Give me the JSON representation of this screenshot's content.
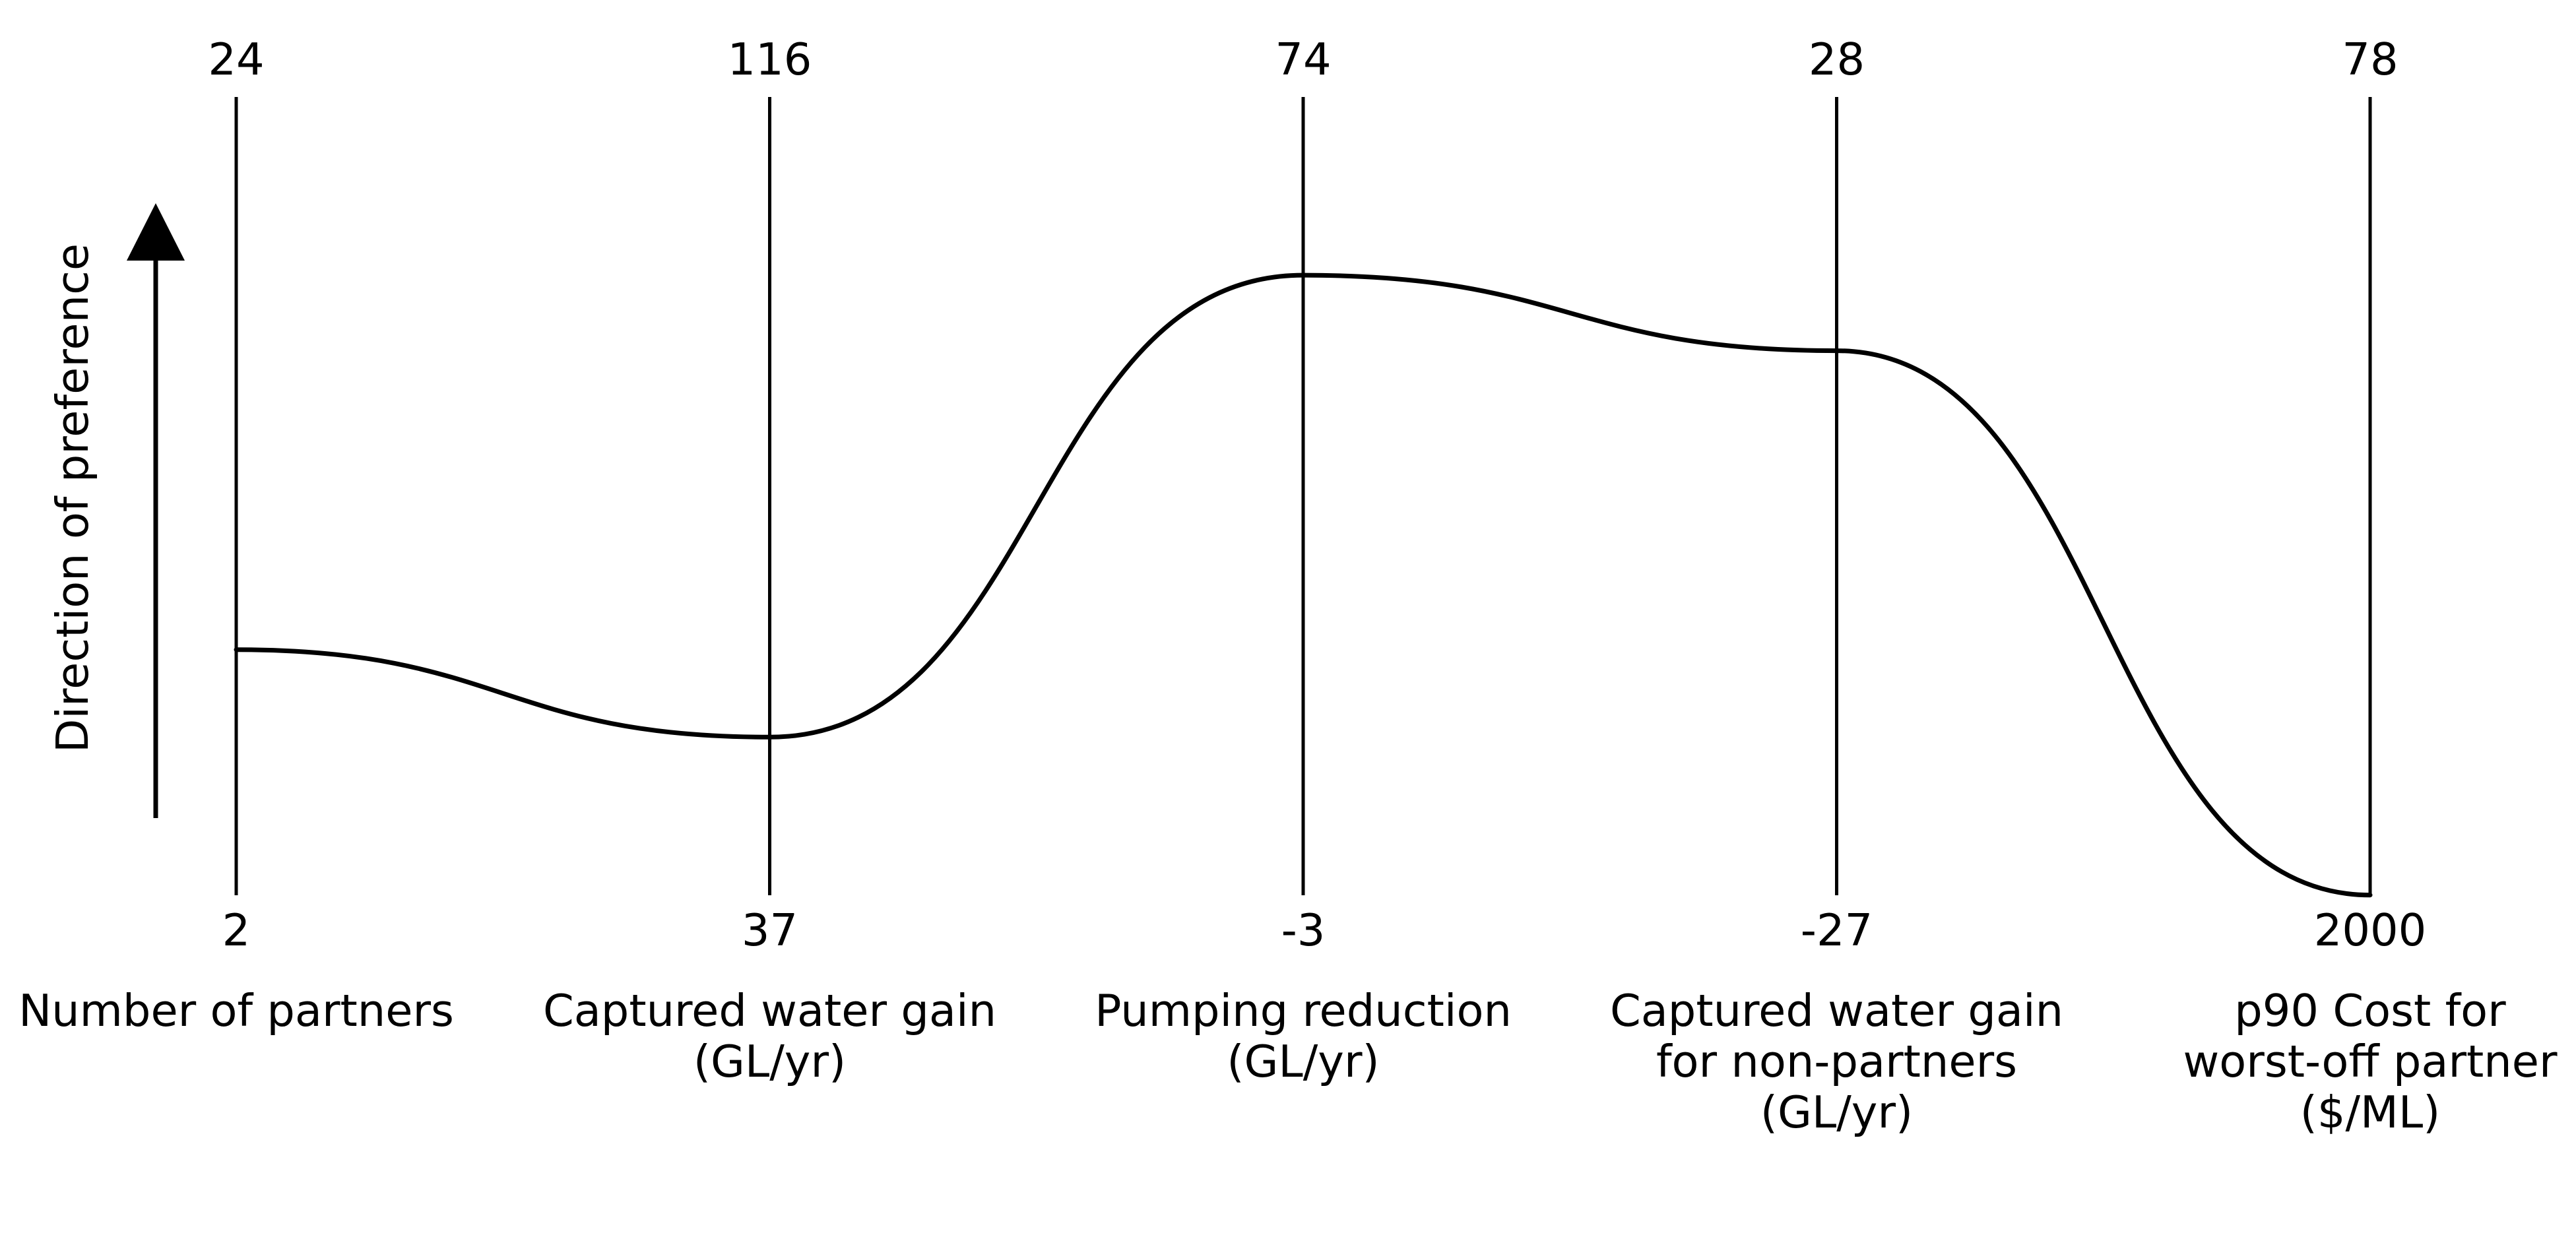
{
  "chart_data": {
    "type": "parallel-coordinates",
    "direction_label": "Direction of preference",
    "line_color": "#000000",
    "axes": [
      {
        "label_lines": [
          "Number of partners"
        ],
        "top": 24,
        "bottom": 2
      },
      {
        "label_lines": [
          "Captured water gain",
          "(GL/yr)"
        ],
        "top": 116,
        "bottom": 37
      },
      {
        "label_lines": [
          "Pumping reduction",
          "(GL/yr)"
        ],
        "top": 74,
        "bottom": -3
      },
      {
        "label_lines": [
          "Captured water gain",
          "for non-partners",
          "(GL/yr)"
        ],
        "top": 28,
        "bottom": -27
      },
      {
        "label_lines": [
          "p90 Cost for",
          "worst-off partner",
          "($/ML)"
        ],
        "top": 78,
        "bottom": 2000
      }
    ],
    "series": [
      {
        "values": [
          8.77,
          52.65,
          56.81,
          10.52,
          1999.5
        ]
      }
    ]
  }
}
